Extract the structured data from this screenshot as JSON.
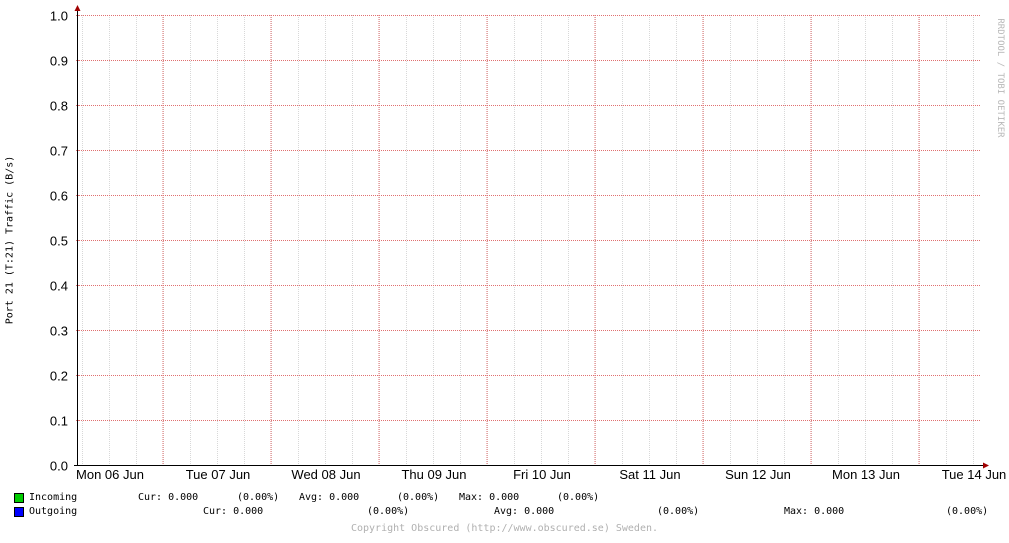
{
  "chart_data": {
    "type": "line",
    "ylabel": "Port 21 (T:21) Traffic (B/s)",
    "ylim": [
      0,
      1
    ],
    "yticks": [
      "0.0",
      "0.1",
      "0.2",
      "0.3",
      "0.4",
      "0.5",
      "0.6",
      "0.7",
      "0.8",
      "0.9",
      "1.0"
    ],
    "categories": [
      "Mon 06 Jun",
      "Tue 07 Jun",
      "Wed 08 Jun",
      "Thu 09 Jun",
      "Fri 10 Jun",
      "Sat 11 Jun",
      "Sun 12 Jun",
      "Mon 13 Jun",
      "Tue 14 Jun"
    ],
    "series": [
      {
        "name": "Incoming",
        "color": "#00cc00",
        "values": [
          0,
          0,
          0,
          0,
          0,
          0,
          0,
          0,
          0
        ]
      },
      {
        "name": "Outgoing",
        "color": "#0000ff",
        "values": [
          0,
          0,
          0,
          0,
          0,
          0,
          0,
          0,
          0
        ]
      }
    ],
    "grid": true,
    "watermark": "RRDTOOL / TOBI OETIKER"
  },
  "legend": {
    "incoming": {
      "name": "Incoming",
      "cur": "Cur: 0.000",
      "cur_pct": "(0.00%)",
      "avg": "Avg: 0.000",
      "avg_pct": "(0.00%)",
      "max": "Max: 0.000",
      "max_pct": "(0.00%)"
    },
    "outgoing": {
      "name": "Outgoing",
      "cur": "Cur: 0.000",
      "cur_pct": "(0.00%)",
      "avg": "Avg: 0.000",
      "avg_pct": "(0.00%)",
      "max": "Max: 0.000",
      "max_pct": "(0.00%)"
    }
  },
  "footer": "Copyright Obscured (http://www.obscured.se) Sweden."
}
